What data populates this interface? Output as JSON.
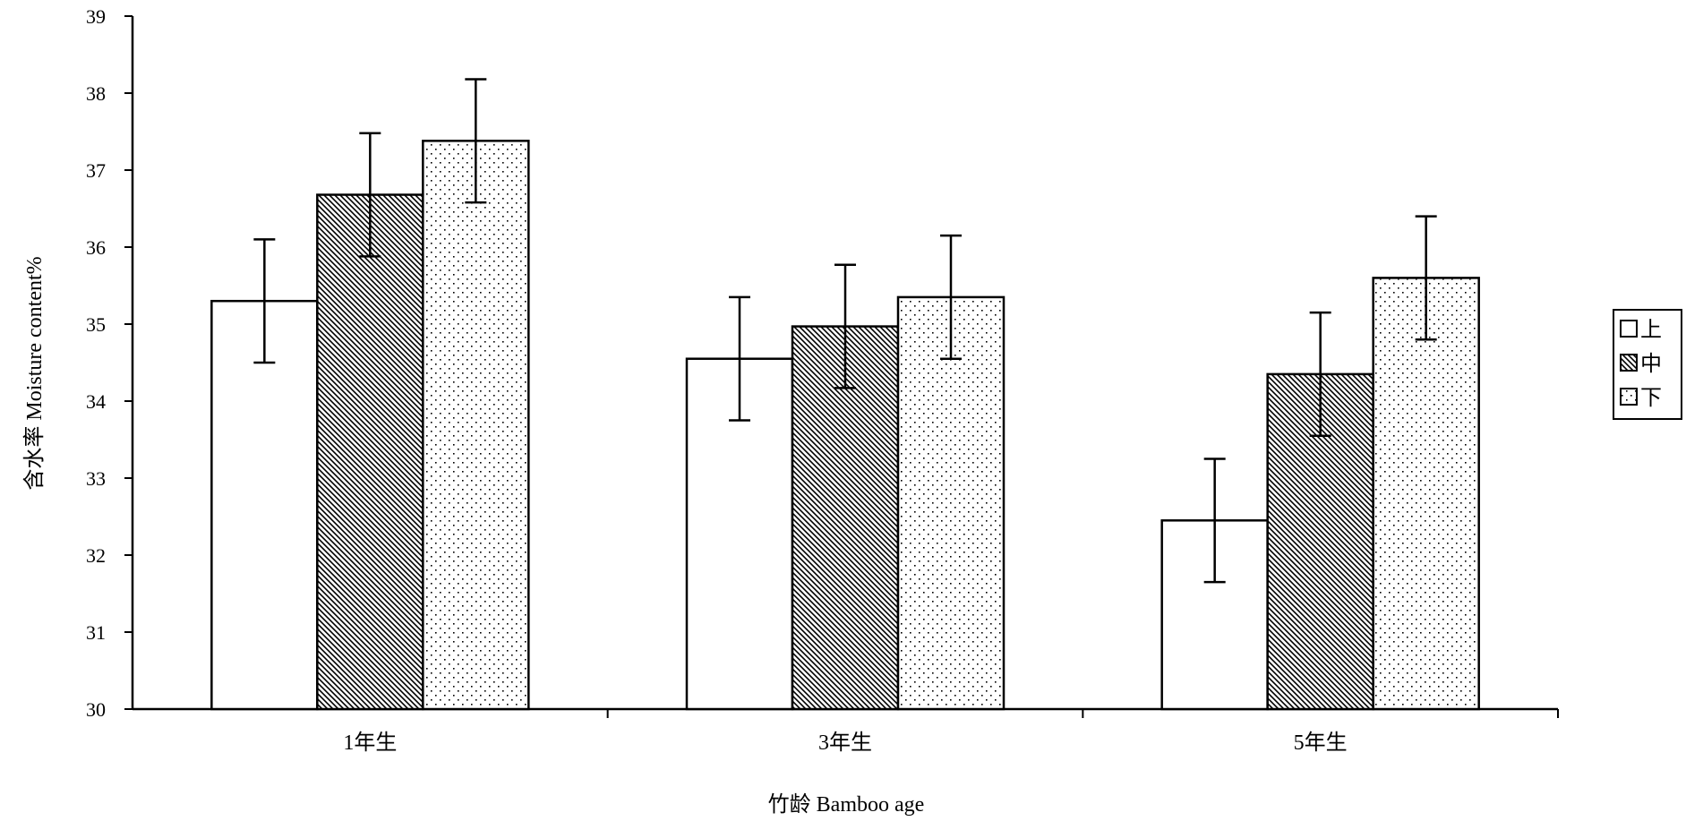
{
  "chart_data": {
    "type": "bar",
    "xlabel": "竹龄 Bamboo age",
    "ylabel": "含水率 Moisture content%",
    "categories": [
      "1年生",
      "3年生",
      "5年生"
    ],
    "ylim": [
      30,
      39
    ],
    "yticks": [
      "30",
      "31",
      "32",
      "33",
      "34",
      "35",
      "36",
      "37",
      "38",
      "39"
    ],
    "series": [
      {
        "name": "上",
        "pattern": "none",
        "values": [
          35.3,
          34.55,
          32.45
        ],
        "errors": [
          0.8,
          0.8,
          0.8
        ]
      },
      {
        "name": "中",
        "pattern": "hatch",
        "values": [
          36.68,
          34.97,
          34.35
        ],
        "errors": [
          0.8,
          0.8,
          0.8
        ]
      },
      {
        "name": "下",
        "pattern": "dots",
        "values": [
          37.38,
          35.35,
          35.6
        ],
        "errors": [
          0.8,
          0.8,
          0.8
        ]
      }
    ],
    "legend_position": "right",
    "grid": false,
    "colors": {
      "bar_fill": "#ffffff",
      "stroke": "#000000"
    }
  }
}
